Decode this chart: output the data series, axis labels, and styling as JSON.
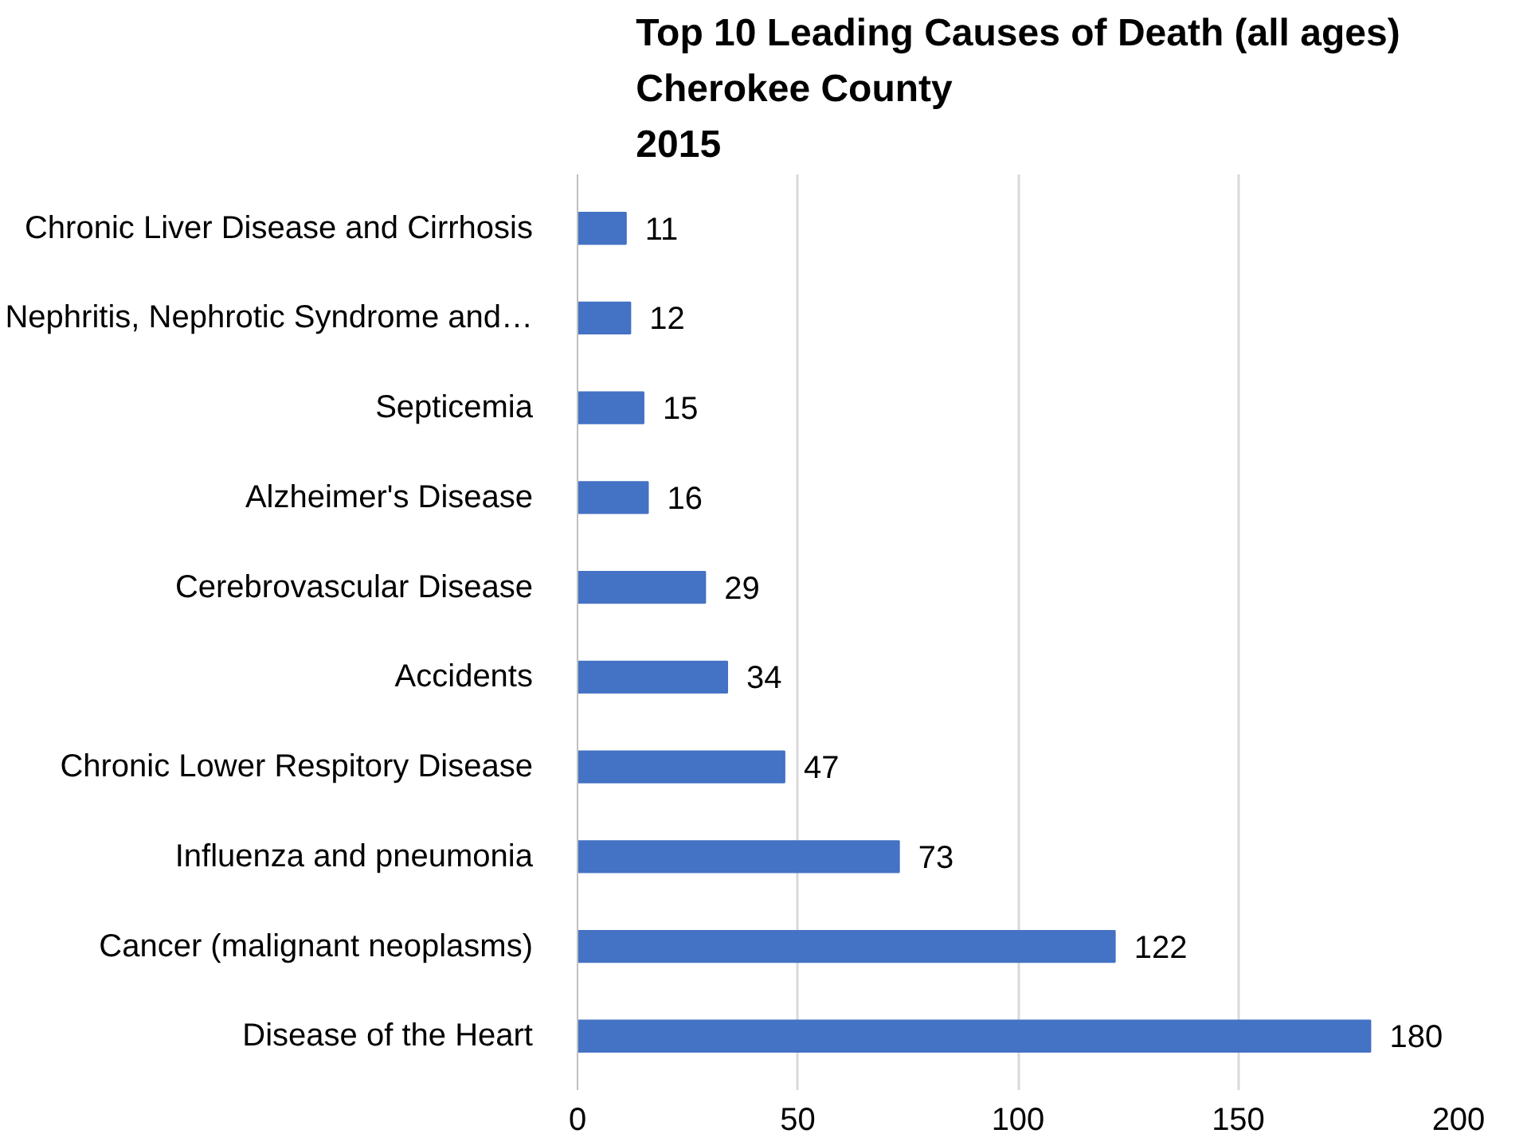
{
  "chart_data": {
    "type": "bar",
    "orientation": "horizontal",
    "title": "Top 10 Leading Causes of Death (all ages)\nCherokee County\n2015",
    "categories": [
      "Chronic Liver Disease and Cirrhosis",
      "Nephritis, Nephrotic Syndrome and…",
      "Septicemia",
      "Alzheimer's Disease",
      "Cerebrovascular Disease",
      "Accidents",
      "Chronic Lower Respitory Disease",
      "Influenza and pneumonia",
      "Cancer (malignant neoplasms)",
      "Disease of the Heart"
    ],
    "values": [
      11,
      12,
      15,
      16,
      29,
      34,
      47,
      73,
      122,
      180
    ],
    "color": "#4472c4",
    "xlim": [
      0,
      200
    ],
    "xticks": [
      0,
      50,
      100,
      150,
      200
    ],
    "grid": "x",
    "data_labels": true
  }
}
